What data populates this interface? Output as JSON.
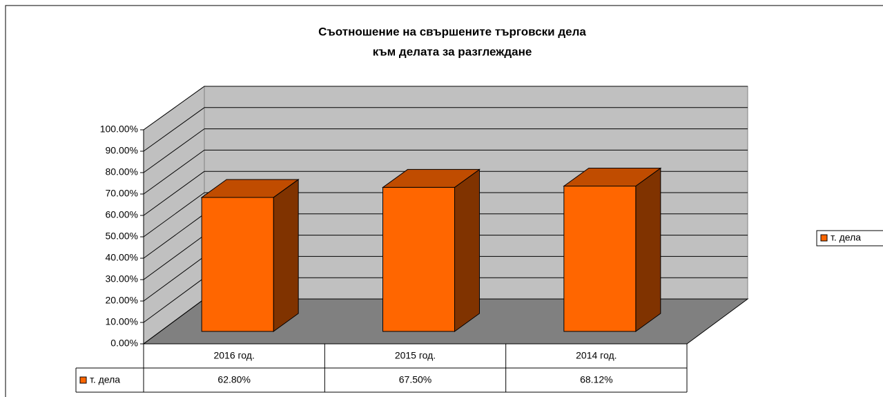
{
  "chart_data": {
    "type": "bar3d",
    "title": [
      "Съотношение на свършените търговски дела",
      "към делата за разглеждане"
    ],
    "categories": [
      "2016 год.",
      "2015 год.",
      "2014 год."
    ],
    "series": [
      {
        "name": "т. дела",
        "color": "#ff6600",
        "values": [
          62.8,
          67.5,
          68.12
        ],
        "value_labels": [
          "62.80%",
          "67.50%",
          "68.12%"
        ]
      }
    ],
    "ylim": [
      0,
      100
    ],
    "yticks": [
      {
        "value": 0,
        "label": "0.00%"
      },
      {
        "value": 10,
        "label": "10.00%"
      },
      {
        "value": 20,
        "label": "20.00%"
      },
      {
        "value": 30,
        "label": "30.00%"
      },
      {
        "value": 40,
        "label": "40.00%"
      },
      {
        "value": 50,
        "label": "50.00%"
      },
      {
        "value": 60,
        "label": "60.00%"
      },
      {
        "value": 70,
        "label": "70.00%"
      },
      {
        "value": 80,
        "label": "80.00%"
      },
      {
        "value": 90,
        "label": "90.00%"
      },
      {
        "value": 100,
        "label": "100.00%"
      }
    ],
    "grid": true,
    "legend": "right"
  }
}
